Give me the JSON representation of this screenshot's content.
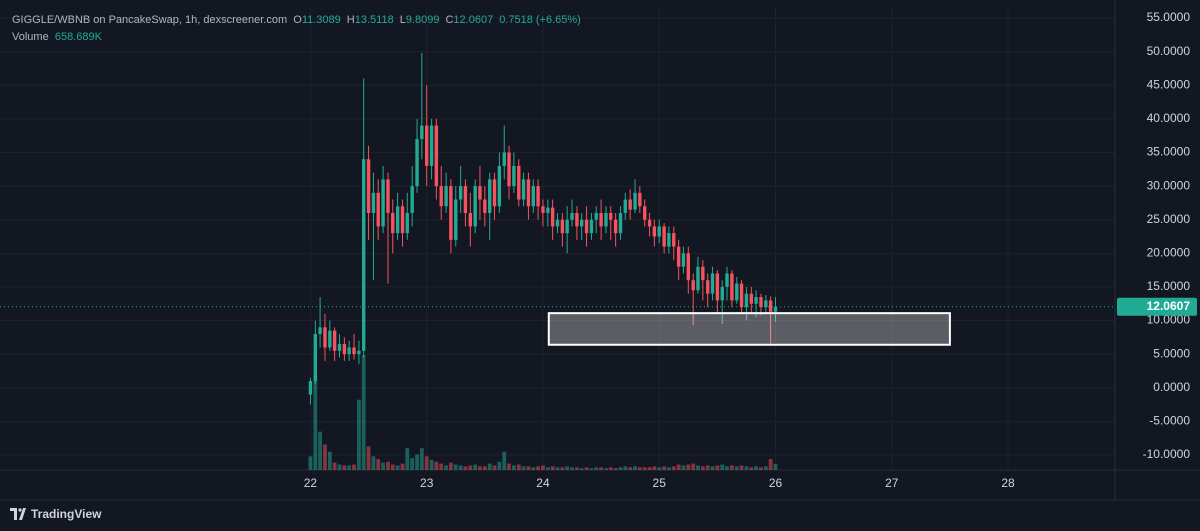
{
  "chart_data": {
    "type": "candlestick",
    "legend": {
      "symbol": "GIGGLE/WBNB on PancakeSwap, 1h, dexscreener.com",
      "ohlc": [
        {
          "key": "O",
          "value": "11.3089"
        },
        {
          "key": "H",
          "value": "13.5118"
        },
        {
          "key": "L",
          "value": "9.8099"
        },
        {
          "key": "C",
          "value": "12.0607"
        }
      ],
      "change": "0.7518 (+6.65%)",
      "volume_key": "Volume",
      "volume_value": "658.689K"
    },
    "last_price_label": "12.0607",
    "brand": "TradingView",
    "up_color": "#22ab94",
    "down_color": "#f7525f",
    "xlim": [
      19.33,
      28.92
    ],
    "xticks": [
      22,
      23,
      24,
      25,
      26,
      27,
      28
    ],
    "ylim": [
      -12.23,
      56.49
    ],
    "yticks": [
      {
        "value": 55,
        "label": "55.0000"
      },
      {
        "value": 50,
        "label": "50.0000"
      },
      {
        "value": 45,
        "label": "45.0000"
      },
      {
        "value": 40,
        "label": "40.0000"
      },
      {
        "value": 35,
        "label": "35.0000"
      },
      {
        "value": 30,
        "label": "30.0000"
      },
      {
        "value": 25,
        "label": "25.0000"
      },
      {
        "value": 20,
        "label": "20.0000"
      },
      {
        "value": 15,
        "label": "15.0000"
      },
      {
        "value": 10,
        "label": "10.0000"
      },
      {
        "value": 5,
        "label": "5.0000"
      },
      {
        "value": 0,
        "label": "0.0000"
      },
      {
        "value": -5,
        "label": "-5.0000"
      },
      {
        "value": -10,
        "label": "-10.0000"
      }
    ],
    "grid": true,
    "zone": {
      "x": [
        24.05,
        27.5
      ],
      "y": [
        6.4,
        11.1
      ]
    },
    "x": [
      22,
      22.042,
      22.083,
      22.125,
      22.167,
      22.208,
      22.25,
      22.292,
      22.333,
      22.375,
      22.417,
      22.458,
      22.5,
      22.542,
      22.583,
      22.625,
      22.667,
      22.708,
      22.75,
      22.792,
      22.833,
      22.875,
      22.917,
      22.958,
      23,
      23.042,
      23.083,
      23.125,
      23.167,
      23.208,
      23.25,
      23.292,
      23.333,
      23.375,
      23.417,
      23.458,
      23.5,
      23.542,
      23.583,
      23.625,
      23.667,
      23.708,
      23.75,
      23.792,
      23.833,
      23.875,
      23.917,
      23.958,
      24,
      24.042,
      24.083,
      24.125,
      24.167,
      24.208,
      24.25,
      24.292,
      24.333,
      24.375,
      24.417,
      24.458,
      24.5,
      24.542,
      24.583,
      24.625,
      24.667,
      24.708,
      24.75,
      24.792,
      24.833,
      24.875,
      24.917,
      24.958,
      25,
      25.042,
      25.083,
      25.125,
      25.167,
      25.208,
      25.25,
      25.292,
      25.333,
      25.375,
      25.417,
      25.458,
      25.5,
      25.542,
      25.583,
      25.625,
      25.667,
      25.708,
      25.75,
      25.792,
      25.833,
      25.875,
      25.917,
      25.958,
      26
    ],
    "open": [
      -1,
      1,
      8,
      9,
      6,
      8.5,
      5.5,
      6.5,
      5,
      6,
      5,
      5.5,
      34,
      26,
      29,
      24,
      31,
      26,
      23,
      27,
      23,
      26,
      30,
      37,
      39,
      33,
      39,
      30,
      27,
      30,
      22,
      28,
      30,
      26,
      24,
      30,
      28,
      26,
      31,
      27,
      33,
      35,
      30,
      33,
      28,
      31,
      27,
      30,
      27,
      26,
      26.8,
      24,
      25,
      23,
      25,
      26,
      24,
      25,
      23,
      25,
      26,
      24,
      26,
      25,
      23,
      26,
      28,
      26.5,
      29,
      27,
      25,
      24,
      22.5,
      24,
      21,
      23,
      21,
      18,
      20,
      16,
      14.5,
      18,
      16,
      14,
      17,
      13,
      15,
      17,
      13,
      15.5,
      12,
      14,
      12.5,
      13.5,
      12,
      13,
      11.3089
    ],
    "high": [
      1.5,
      10,
      13.5,
      11,
      10,
      9,
      8,
      7.5,
      7,
      8,
      7,
      46,
      36,
      32,
      31,
      33,
      32,
      28,
      29,
      28,
      29,
      33,
      40,
      49.8,
      45,
      40,
      40,
      33,
      32,
      31,
      30,
      33,
      31,
      29,
      31,
      33,
      30,
      32,
      32,
      35,
      39,
      36,
      35,
      34,
      32,
      32,
      31,
      31,
      28,
      28,
      28,
      26,
      26,
      27,
      28,
      27,
      26,
      27,
      26,
      27,
      28,
      27,
      27,
      26,
      27,
      29,
      29.5,
      31,
      30,
      28,
      26,
      25,
      25,
      24.5,
      24,
      24,
      22,
      21,
      21,
      17,
      19.5,
      19,
      17,
      18,
      17.5,
      16,
      18,
      17.5,
      16.5,
      16,
      15,
      15,
      14.5,
      14,
      13.8,
      13.6,
      13.5118
    ],
    "low": [
      -2.5,
      0.5,
      6,
      4,
      5.5,
      4,
      4.5,
      4,
      4,
      4.2,
      3.5,
      4.5,
      22,
      16,
      22,
      23,
      15.5,
      20,
      22,
      21,
      22,
      24,
      29,
      34,
      30,
      31,
      28,
      25,
      26,
      20,
      21,
      26,
      24,
      21,
      23,
      25,
      24,
      22,
      25,
      26,
      31,
      28,
      29,
      27,
      27,
      25,
      26,
      25,
      24,
      24,
      22,
      23,
      21,
      20,
      24,
      22,
      22,
      21,
      22,
      23,
      22,
      23,
      22,
      21,
      22,
      25,
      25,
      26,
      26,
      24,
      22.5,
      21,
      21.5,
      20,
      20,
      19,
      16,
      17,
      14,
      9.3,
      14,
      13,
      12,
      13,
      11,
      9.5,
      13,
      12,
      12.5,
      11,
      10,
      11,
      10.5,
      10.8,
      11,
      6.6,
      9.8099
    ],
    "close": [
      1,
      8,
      9,
      6,
      8.5,
      5.5,
      6.5,
      5,
      6,
      5,
      5.5,
      34,
      26,
      29,
      24,
      31,
      26,
      23,
      27,
      23,
      26,
      30,
      37,
      39,
      33,
      39,
      30,
      27,
      30,
      22,
      28,
      30,
      26,
      24,
      30,
      28,
      26,
      31,
      27,
      33,
      35,
      30,
      33,
      28,
      31,
      27,
      30,
      27,
      26,
      26.8,
      24,
      25,
      23,
      25,
      26,
      24,
      25,
      23,
      25,
      26,
      24,
      26,
      25,
      23,
      26,
      28,
      26.5,
      29,
      27,
      25,
      24,
      22.5,
      24,
      21,
      23,
      21,
      18,
      20,
      16,
      14.5,
      18,
      16,
      14,
      17,
      13,
      15,
      17,
      13,
      15.5,
      12,
      14,
      12.5,
      13.5,
      12,
      13,
      11.3,
      12.0607
    ],
    "volume": [
      1500000,
      10400000,
      4200000,
      2800000,
      2000000,
      800000,
      600000,
      500000,
      500000,
      600000,
      7700000,
      12600000,
      2600000,
      1500000,
      1200000,
      800000,
      900000,
      600000,
      500000,
      700000,
      2400000,
      1300000,
      1700000,
      2400000,
      1500000,
      1100000,
      900000,
      700000,
      500000,
      800000,
      600000,
      500000,
      400000,
      500000,
      600000,
      400000,
      400000,
      700000,
      500000,
      900000,
      2000000,
      700000,
      500000,
      600000,
      400000,
      400000,
      300000,
      400000,
      500000,
      300000,
      400000,
      300000,
      300000,
      400000,
      300000,
      300000,
      200000,
      300000,
      200000,
      300000,
      300000,
      200000,
      300000,
      200000,
      300000,
      400000,
      300000,
      400000,
      300000,
      300000,
      300000,
      400000,
      300000,
      400000,
      300000,
      400000,
      600000,
      500000,
      600000,
      700000,
      500000,
      400000,
      500000,
      400000,
      500000,
      600000,
      400000,
      500000,
      400000,
      500000,
      400000,
      300000,
      400000,
      300000,
      400000,
      1200000,
      658689
    ]
  }
}
